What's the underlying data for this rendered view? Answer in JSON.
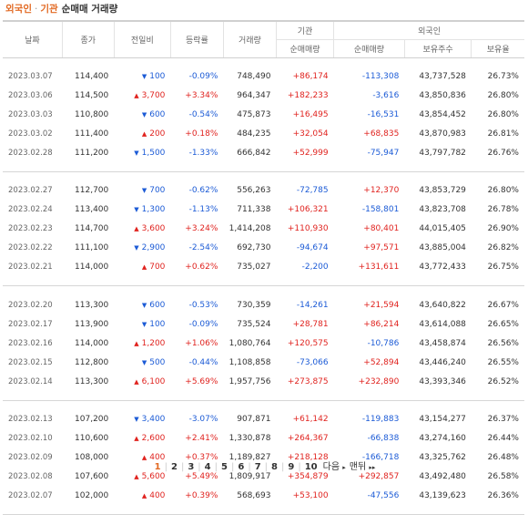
{
  "title": {
    "part1": "외국인",
    "sep": "·",
    "part2": "기관",
    "part3": "순매매 거래량"
  },
  "headers": {
    "date": "날짜",
    "close": "종가",
    "change": "전일비",
    "rate": "등락률",
    "volume": "거래량",
    "inst_group": "기관",
    "inst_net": "순매매량",
    "foreign_group": "외국인",
    "foreign_net": "순매매량",
    "foreign_hold": "보유주수",
    "foreign_ratio": "보유율"
  },
  "groups": [
    [
      {
        "date": "2023.03.07",
        "close": "114,400",
        "change": "100",
        "dir": "down",
        "rate": "-0.09%",
        "volume": "748,490",
        "inst": "+86,174",
        "foreign": "-113,308",
        "hold": "43,737,528",
        "ratio": "26.73%"
      },
      {
        "date": "2023.03.06",
        "close": "114,500",
        "change": "3,700",
        "dir": "up",
        "rate": "+3.34%",
        "volume": "964,347",
        "inst": "+182,233",
        "foreign": "-3,616",
        "hold": "43,850,836",
        "ratio": "26.80%"
      },
      {
        "date": "2023.03.03",
        "close": "110,800",
        "change": "600",
        "dir": "down",
        "rate": "-0.54%",
        "volume": "475,873",
        "inst": "+16,495",
        "foreign": "-16,531",
        "hold": "43,854,452",
        "ratio": "26.80%"
      },
      {
        "date": "2023.03.02",
        "close": "111,400",
        "change": "200",
        "dir": "up",
        "rate": "+0.18%",
        "volume": "484,235",
        "inst": "+32,054",
        "foreign": "+68,835",
        "hold": "43,870,983",
        "ratio": "26.81%"
      },
      {
        "date": "2023.02.28",
        "close": "111,200",
        "change": "1,500",
        "dir": "down",
        "rate": "-1.33%",
        "volume": "666,842",
        "inst": "+52,999",
        "foreign": "-75,947",
        "hold": "43,797,782",
        "ratio": "26.76%"
      }
    ],
    [
      {
        "date": "2023.02.27",
        "close": "112,700",
        "change": "700",
        "dir": "down",
        "rate": "-0.62%",
        "volume": "556,263",
        "inst": "-72,785",
        "foreign": "+12,370",
        "hold": "43,853,729",
        "ratio": "26.80%"
      },
      {
        "date": "2023.02.24",
        "close": "113,400",
        "change": "1,300",
        "dir": "down",
        "rate": "-1.13%",
        "volume": "711,338",
        "inst": "+106,321",
        "foreign": "-158,801",
        "hold": "43,823,708",
        "ratio": "26.78%"
      },
      {
        "date": "2023.02.23",
        "close": "114,700",
        "change": "3,600",
        "dir": "up",
        "rate": "+3.24%",
        "volume": "1,414,208",
        "inst": "+110,930",
        "foreign": "+80,401",
        "hold": "44,015,405",
        "ratio": "26.90%"
      },
      {
        "date": "2023.02.22",
        "close": "111,100",
        "change": "2,900",
        "dir": "down",
        "rate": "-2.54%",
        "volume": "692,730",
        "inst": "-94,674",
        "foreign": "+97,571",
        "hold": "43,885,004",
        "ratio": "26.82%"
      },
      {
        "date": "2023.02.21",
        "close": "114,000",
        "change": "700",
        "dir": "up",
        "rate": "+0.62%",
        "volume": "735,027",
        "inst": "-2,200",
        "foreign": "+131,611",
        "hold": "43,772,433",
        "ratio": "26.75%"
      }
    ],
    [
      {
        "date": "2023.02.20",
        "close": "113,300",
        "change": "600",
        "dir": "down",
        "rate": "-0.53%",
        "volume": "730,359",
        "inst": "-14,261",
        "foreign": "+21,594",
        "hold": "43,640,822",
        "ratio": "26.67%"
      },
      {
        "date": "2023.02.17",
        "close": "113,900",
        "change": "100",
        "dir": "down",
        "rate": "-0.09%",
        "volume": "735,524",
        "inst": "+28,781",
        "foreign": "+86,214",
        "hold": "43,614,088",
        "ratio": "26.65%"
      },
      {
        "date": "2023.02.16",
        "close": "114,000",
        "change": "1,200",
        "dir": "up",
        "rate": "+1.06%",
        "volume": "1,080,764",
        "inst": "+120,575",
        "foreign": "-10,786",
        "hold": "43,458,874",
        "ratio": "26.56%"
      },
      {
        "date": "2023.02.15",
        "close": "112,800",
        "change": "500",
        "dir": "down",
        "rate": "-0.44%",
        "volume": "1,108,858",
        "inst": "-73,066",
        "foreign": "+52,894",
        "hold": "43,446,240",
        "ratio": "26.55%"
      },
      {
        "date": "2023.02.14",
        "close": "113,300",
        "change": "6,100",
        "dir": "up",
        "rate": "+5.69%",
        "volume": "1,957,756",
        "inst": "+273,875",
        "foreign": "+232,890",
        "hold": "43,393,346",
        "ratio": "26.52%"
      }
    ],
    [
      {
        "date": "2023.02.13",
        "close": "107,200",
        "change": "3,400",
        "dir": "down",
        "rate": "-3.07%",
        "volume": "907,871",
        "inst": "+61,142",
        "foreign": "-119,883",
        "hold": "43,154,277",
        "ratio": "26.37%"
      },
      {
        "date": "2023.02.10",
        "close": "110,600",
        "change": "2,600",
        "dir": "up",
        "rate": "+2.41%",
        "volume": "1,330,878",
        "inst": "+264,367",
        "foreign": "-66,838",
        "hold": "43,274,160",
        "ratio": "26.44%"
      },
      {
        "date": "2023.02.09",
        "close": "108,000",
        "change": "400",
        "dir": "up",
        "rate": "+0.37%",
        "volume": "1,189,827",
        "inst": "+218,128",
        "foreign": "-166,718",
        "hold": "43,325,762",
        "ratio": "26.48%"
      },
      {
        "date": "2023.02.08",
        "close": "107,600",
        "change": "5,600",
        "dir": "up",
        "rate": "+5.49%",
        "volume": "1,809,917",
        "inst": "+354,879",
        "foreign": "+292,857",
        "hold": "43,492,480",
        "ratio": "26.58%"
      },
      {
        "date": "2023.02.07",
        "close": "102,000",
        "change": "400",
        "dir": "up",
        "rate": "+0.39%",
        "volume": "568,693",
        "inst": "+53,100",
        "foreign": "-47,556",
        "hold": "43,139,623",
        "ratio": "26.36%"
      }
    ]
  ],
  "arrows": {
    "up": "▲",
    "down": "▼"
  },
  "pagination": {
    "pages": [
      "1",
      "2",
      "3",
      "4",
      "5",
      "6",
      "7",
      "8",
      "9",
      "10"
    ],
    "current": "1",
    "next_label": "다음",
    "last_label": "맨뒤",
    "next_glyph": "▸",
    "last_glyph": "▸▸",
    "separator": "|"
  },
  "colors": {
    "up": "#e0231f",
    "down": "#1c5bd6",
    "accent": "#e26a24"
  }
}
